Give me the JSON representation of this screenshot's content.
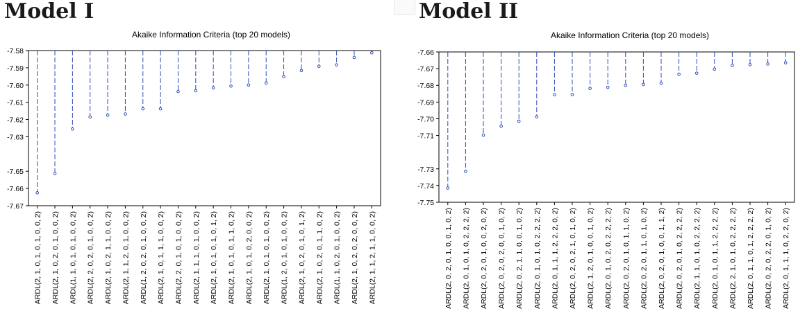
{
  "models": [
    {
      "heading": "Model I",
      "chart_data": {
        "type": "scatter",
        "title": "Akaike Information Criteria (top 20 models)",
        "xlabel": "",
        "ylabel": "",
        "yticks": [
          -7.58,
          -7.59,
          -7.6,
          -7.61,
          -7.62,
          -7.63,
          -7.65,
          -7.66,
          -7.67
        ],
        "ytick_labels": [
          "-7.58",
          "-7.59",
          "-7.60",
          "-7.61",
          "-7.62",
          "-7.63",
          "-7.65",
          "-7.66",
          "-7.67"
        ],
        "ylim": [
          -7.67,
          -7.58
        ],
        "grid": false,
        "categories": [
          "ARDL(2, 1, 0, 1, 0, 1, 0, 0, 2)",
          "ARDL(2, 1, 0, 2, 0, 1, 0, 0, 2)",
          "ARDL(1, 1, 0, 1, 0, 1, 0, 0, 2)",
          "ARDL(2, 2, 0, 2, 0, 1, 0, 0, 2)",
          "ARDL(2, 1, 0, 2, 1, 1, 0, 0, 2)",
          "ARDL(2, 1, 1, 2, 0, 1, 0, 0, 2)",
          "ARDL(1, 2, 0, 2, 0, 1, 0, 0, 2)",
          "ARDL(2, 1, 0, 1, 1, 1, 0, 0, 2)",
          "ARDL(2, 2, 0, 1, 0, 1, 0, 0, 2)",
          "ARDL(2, 1, 1, 1, 0, 1, 0, 0, 2)",
          "ARDL(2, 1, 0, 1, 0, 1, 0, 1, 2)",
          "ARDL(2, 1, 0, 1, 0, 1, 1, 0, 2)",
          "ARDL(2, 1, 0, 1, 0, 2, 0, 0, 2)",
          "ARDL(2, 1, 0, 1, 0, 1, 0, 0, 2)",
          "ARDL(1, 2, 0, 1, 0, 1, 0, 0, 2)",
          "ARDL(2, 1, 0, 2, 0, 1, 0, 1, 2)",
          "ARDL(2, 1, 0, 2, 0, 1, 1, 0, 2)",
          "ARDL(1, 1, 0, 2, 0, 1, 0, 0, 2)",
          "ARDL(2, 1, 0, 2, 0, 2, 0, 0, 2)",
          "ARDL(2, 1, 1, 2, 1, 1, 0, 0, 2)"
        ],
        "values": [
          -7.6625,
          -7.6513,
          -7.6255,
          -7.6185,
          -7.6175,
          -7.6168,
          -7.6138,
          -7.6138,
          -7.6038,
          -7.6033,
          -7.6016,
          -7.6006,
          -7.6,
          -7.5988,
          -7.5951,
          -7.5916,
          -7.5891,
          -7.5883,
          -7.584,
          -7.5813
        ]
      }
    },
    {
      "heading": "Model II",
      "chart_data": {
        "type": "scatter",
        "title": "Akaike Information Criteria (top 20 models)",
        "xlabel": "",
        "ylabel": "",
        "yticks": [
          -7.66,
          -7.67,
          -7.68,
          -7.69,
          -7.7,
          -7.71,
          -7.73,
          -7.74,
          -7.75
        ],
        "ytick_labels": [
          "-7.66",
          "-7.67",
          "-7.68",
          "-7.69",
          "-7.70",
          "-7.71",
          "-7.73",
          "-7.74",
          "-7.75"
        ],
        "ylim": [
          -7.75,
          -7.66
        ],
        "grid": false,
        "categories": [
          "ARDL(2, 0, 2, 0, 1, 0, 0, 1, 0, 2)",
          "ARDL(2, 0, 1, 0, 1, 0, 2, 2, 2, 2)",
          "ARDL(2, 0, 2, 0, 1, 0, 0, 2, 0, 2)",
          "ARDL(2, 0, 2, 0, 2, 0, 0, 1, 0, 2)",
          "ARDL(2, 0, 2, 1, 1, 0, 0, 1, 0, 2)",
          "ARDL(2, 0, 1, 0, 1, 0, 2, 2, 2, 2)",
          "ARDL(2, 0, 1, 1, 1, 2, 2, 2, 0, 2)",
          "ARDL(2, 0, 2, 0, 2, 1, 0, 1, 0, 2)",
          "ARDL(2, 1, 2, 0, 1, 0, 0, 1, 0, 2)",
          "ARDL(2, 0, 1, 0, 2, 0, 2, 2, 2, 2)",
          "ARDL(2, 0, 2, 0, 1, 0, 1, 1, 0, 2)",
          "ARDL(2, 0, 2, 0, 1, 1, 0, 1, 0, 2)",
          "ARDL(2, 0, 2, 0, 1, 0, 0, 1, 1, 2)",
          "ARDL(2, 0, 2, 0, 1, 0, 2, 2, 2, 2)",
          "ARDL(2, 1, 1, 0, 1, 0, 2, 2, 2, 2)",
          "ARDL(2, 0, 1, 0, 1, 1, 2, 2, 2, 2)",
          "ARDL(2, 2, 1, 0, 1, 0, 2, 2, 2, 2)",
          "ARDL(2, 0, 1, 1, 0, 1, 2, 2, 2, 2)",
          "ARDL(2, 0, 2, 0, 2, 2, 0, 1, 0, 2)",
          "ARDL(2, 0, 1, 1, 1, 0, 2, 2, 0, 2)"
        ],
        "values": [
          -7.7415,
          -7.7315,
          -7.7098,
          -7.7045,
          -7.7015,
          -7.6988,
          -7.6856,
          -7.6855,
          -7.6818,
          -7.6812,
          -7.68,
          -7.6795,
          -7.6788,
          -7.6733,
          -7.6727,
          -7.6703,
          -7.6681,
          -7.6676,
          -7.6672,
          -7.6665
        ]
      }
    }
  ]
}
